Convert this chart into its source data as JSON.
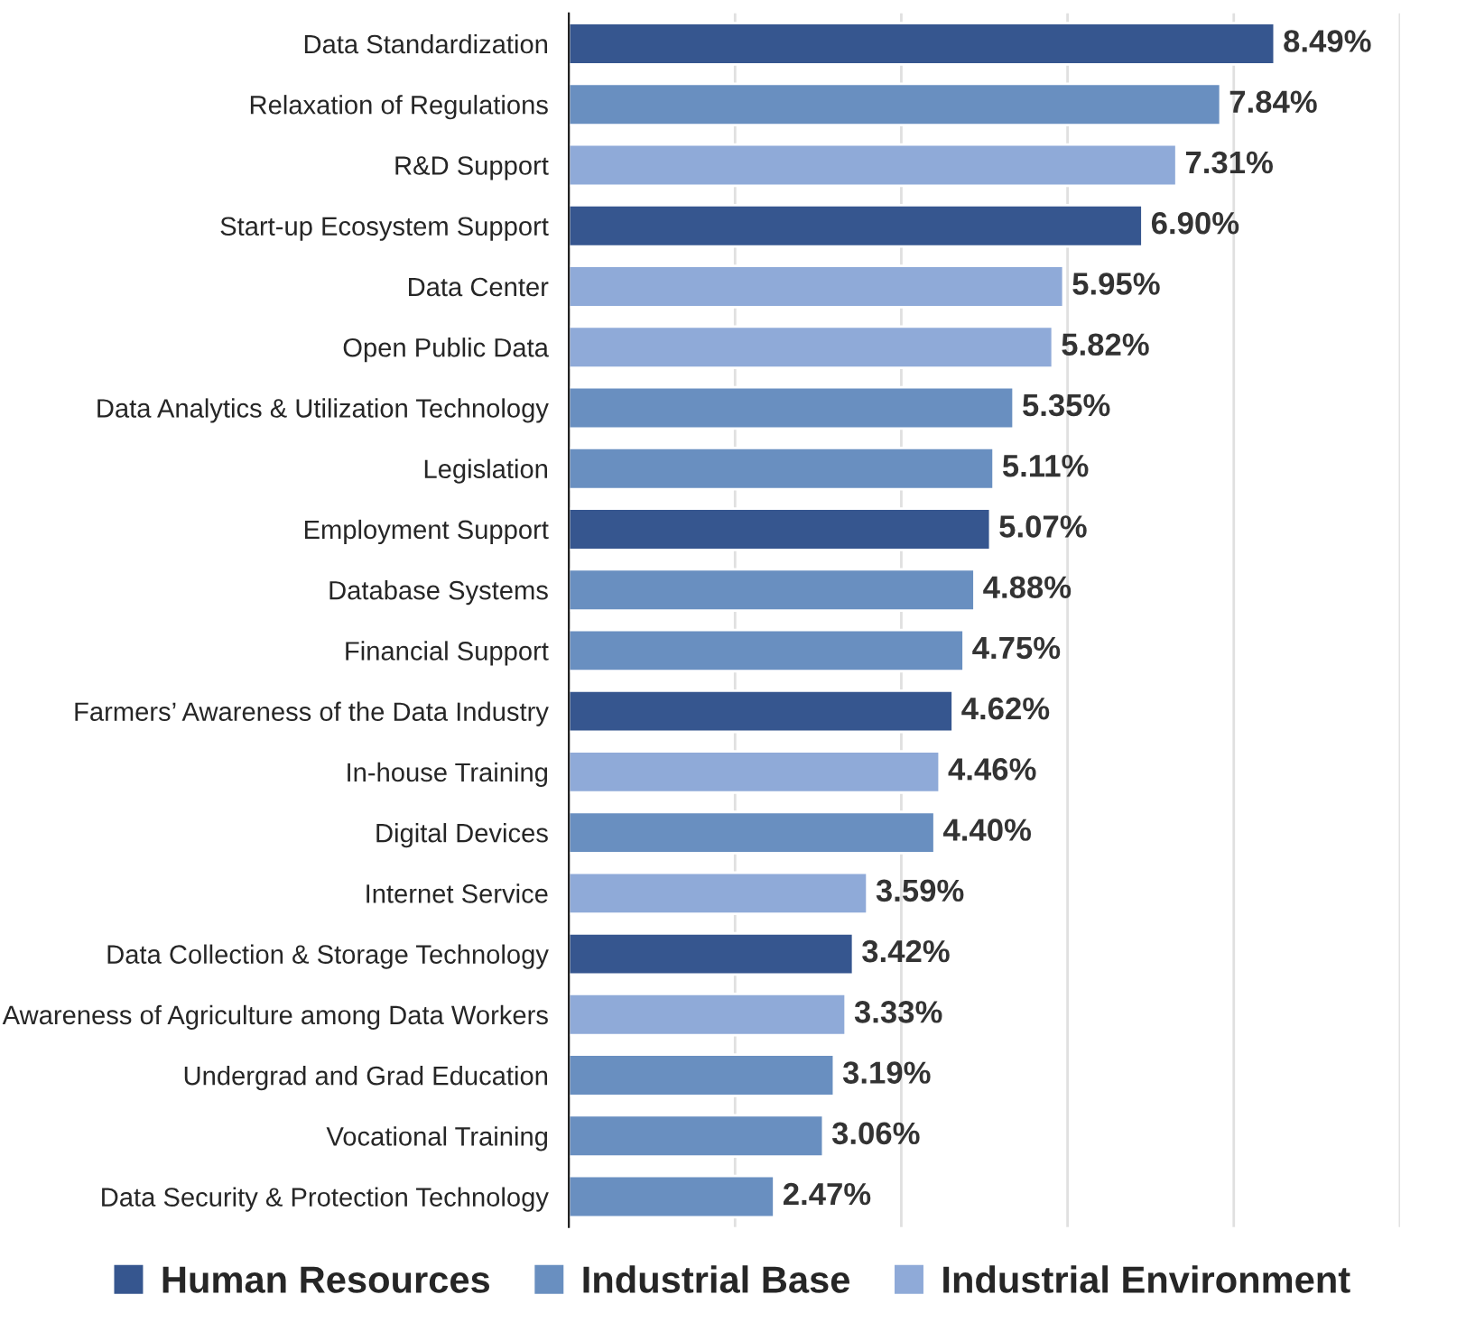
{
  "chart_data": {
    "type": "bar",
    "orientation": "horizontal",
    "categories": [
      "Data Standardization",
      "Relaxation of Regulations",
      "R&D Support",
      "Start-up Ecosystem Support",
      "Data Center",
      "Open Public Data",
      "Data Analytics & Utilization Technology",
      "Legislation",
      "Employment Support",
      "Database Systems",
      "Financial Support",
      "Farmers’ Awareness of the Data Industry",
      "In-house Training",
      "Digital Devices",
      "Internet Service",
      "Data Collection & Storage Technology",
      "Awareness of Agriculture among Data Workers",
      "Undergrad and Grad Education",
      "Vocational Training",
      "Data Security & Protection Technology"
    ],
    "series": [
      {
        "name": "Human Resources",
        "color": "#36568f",
        "values": [
          8.49,
          null,
          null,
          6.9,
          null,
          null,
          null,
          null,
          5.07,
          null,
          null,
          4.62,
          null,
          null,
          null,
          3.42,
          null,
          null,
          null,
          null
        ],
        "value_labels": [
          "8.49%",
          null,
          null,
          "6.90%",
          null,
          null,
          null,
          null,
          "5.07%",
          null,
          null,
          "4.62%",
          null,
          null,
          null,
          "3.42%",
          null,
          null,
          null,
          null
        ]
      },
      {
        "name": "Industrial Base",
        "color": "#698fc0",
        "values": [
          null,
          7.84,
          null,
          null,
          null,
          null,
          5.35,
          5.11,
          null,
          4.88,
          4.75,
          null,
          null,
          4.4,
          null,
          null,
          null,
          3.19,
          3.06,
          2.47
        ],
        "value_labels": [
          null,
          "7.84%",
          null,
          null,
          null,
          null,
          "5.35%",
          "5.11%",
          null,
          "4.88%",
          "4.75%",
          null,
          null,
          "4.40%",
          null,
          null,
          null,
          "3.19%",
          "3.06%",
          "2.47%"
        ]
      },
      {
        "name": "Industrial Environment",
        "color": "#8faad8",
        "values": [
          null,
          null,
          7.31,
          null,
          5.95,
          5.82,
          null,
          null,
          null,
          null,
          null,
          null,
          4.46,
          null,
          3.59,
          null,
          3.33,
          null,
          null,
          null
        ],
        "value_labels": [
          null,
          null,
          "7.31%",
          null,
          "5.95%",
          "5.82%",
          null,
          null,
          null,
          null,
          null,
          null,
          "4.46%",
          null,
          "3.59%",
          null,
          "3.33%",
          null,
          null,
          null
        ]
      }
    ],
    "xlim": [
      0,
      10
    ],
    "xticks": [
      {
        "value": 0,
        "label": null
      },
      {
        "value": 2,
        "label": null
      },
      {
        "value": 4,
        "label": null
      },
      {
        "value": 6,
        "label": null
      },
      {
        "value": 8,
        "label": null
      },
      {
        "value": 10,
        "label": null
      }
    ],
    "grid": "x",
    "legend": "bottom"
  }
}
